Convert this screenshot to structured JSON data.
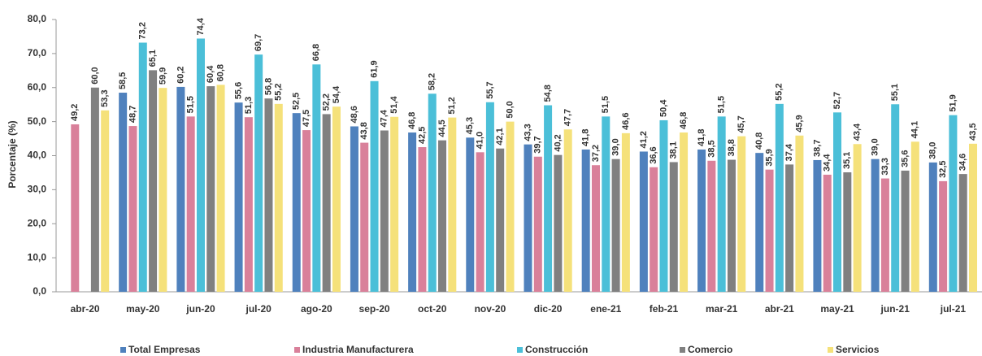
{
  "chart_data": {
    "type": "bar",
    "y_label": "Porcentaje (%)",
    "categories": [
      "abr-20",
      "may-20",
      "jun-20",
      "jul-20",
      "ago-20",
      "sep-20",
      "oct-20",
      "nov-20",
      "dic-20",
      "ene-21",
      "feb-21",
      "mar-21",
      "abr-21",
      "may-21",
      "jun-21",
      "jul-21"
    ],
    "series": [
      {
        "name": "Total Empresas",
        "color": "#4f81bd",
        "values": [
          null,
          58.5,
          60.2,
          55.6,
          52.5,
          48.6,
          46.8,
          45.3,
          43.3,
          41.8,
          41.2,
          41.8,
          40.8,
          38.7,
          39.0,
          38.0
        ],
        "value_labels": [
          null,
          "58,5",
          "60,2",
          "55,6",
          "52,5",
          "48,6",
          "46,8",
          "45,3",
          "43,3",
          "41,8",
          "41,2",
          "41,8",
          "40,8",
          "38,7",
          "39,0",
          "38,0"
        ]
      },
      {
        "name": "Industria Manufacturera",
        "color": "#d9809a",
        "values": [
          49.2,
          48.7,
          51.5,
          51.3,
          47.5,
          43.8,
          42.5,
          41.0,
          39.7,
          37.2,
          36.6,
          38.5,
          35.9,
          34.4,
          33.3,
          32.5
        ],
        "value_labels": [
          "49,2",
          "48,7",
          "51,5",
          "51,3",
          "47,5",
          "43,8",
          "42,5",
          "41,0",
          "39,7",
          "37,2",
          "36,6",
          "38,5",
          "35,9",
          "34,4",
          "33,3",
          "32,5"
        ]
      },
      {
        "name": "Construcción",
        "color": "#4bbfd8",
        "values": [
          null,
          73.2,
          74.4,
          69.7,
          66.8,
          61.9,
          58.2,
          55.7,
          54.8,
          51.5,
          50.4,
          51.5,
          55.2,
          52.7,
          55.1,
          51.9
        ],
        "value_labels": [
          null,
          "73,2",
          "74,4",
          "69,7",
          "66,8",
          "61,9",
          "58,2",
          "55,7",
          "54,8",
          "51,5",
          "50,4",
          "51,5",
          "55,2",
          "52,7",
          "55,1",
          "51,9"
        ]
      },
      {
        "name": "Comercio",
        "color": "#808080",
        "values": [
          60.0,
          65.1,
          60.4,
          56.8,
          52.2,
          47.4,
          44.5,
          42.1,
          40.2,
          39.0,
          38.1,
          38.8,
          37.4,
          35.1,
          35.6,
          34.6
        ],
        "value_labels": [
          "60,0",
          "65,1",
          "60,4",
          "56,8",
          "52,2",
          "47,4",
          "44,5",
          "42,1",
          "40,2",
          "39,0",
          "38,1",
          "38,8",
          "37,4",
          "35,1",
          "35,6",
          "34,6"
        ]
      },
      {
        "name": "Servicios",
        "color": "#f5e17a",
        "values": [
          53.3,
          59.9,
          60.8,
          55.2,
          54.4,
          51.4,
          51.2,
          50.0,
          47.7,
          46.6,
          46.8,
          45.7,
          45.9,
          43.4,
          44.1,
          43.5
        ],
        "value_labels": [
          "53,3",
          "59,9",
          "60,8",
          "55,2",
          "54,4",
          "51,4",
          "51,2",
          "50,0",
          "47,7",
          "46,6",
          "46,8",
          "45,7",
          "45,9",
          "43,4",
          "44,1",
          "43,5"
        ]
      }
    ],
    "ylim": [
      0,
      80
    ],
    "yticks": [
      {
        "value": 0,
        "label": "0,0"
      },
      {
        "value": 10,
        "label": "10,0"
      },
      {
        "value": 20,
        "label": "20,0"
      },
      {
        "value": 30,
        "label": "30,0"
      },
      {
        "value": 40,
        "label": "40,0"
      },
      {
        "value": 50,
        "label": "50,0"
      },
      {
        "value": 60,
        "label": "60,0"
      },
      {
        "value": 70,
        "label": "70,0"
      },
      {
        "value": 80,
        "label": "80,0"
      }
    ],
    "grid": false,
    "legend": "bottom"
  }
}
